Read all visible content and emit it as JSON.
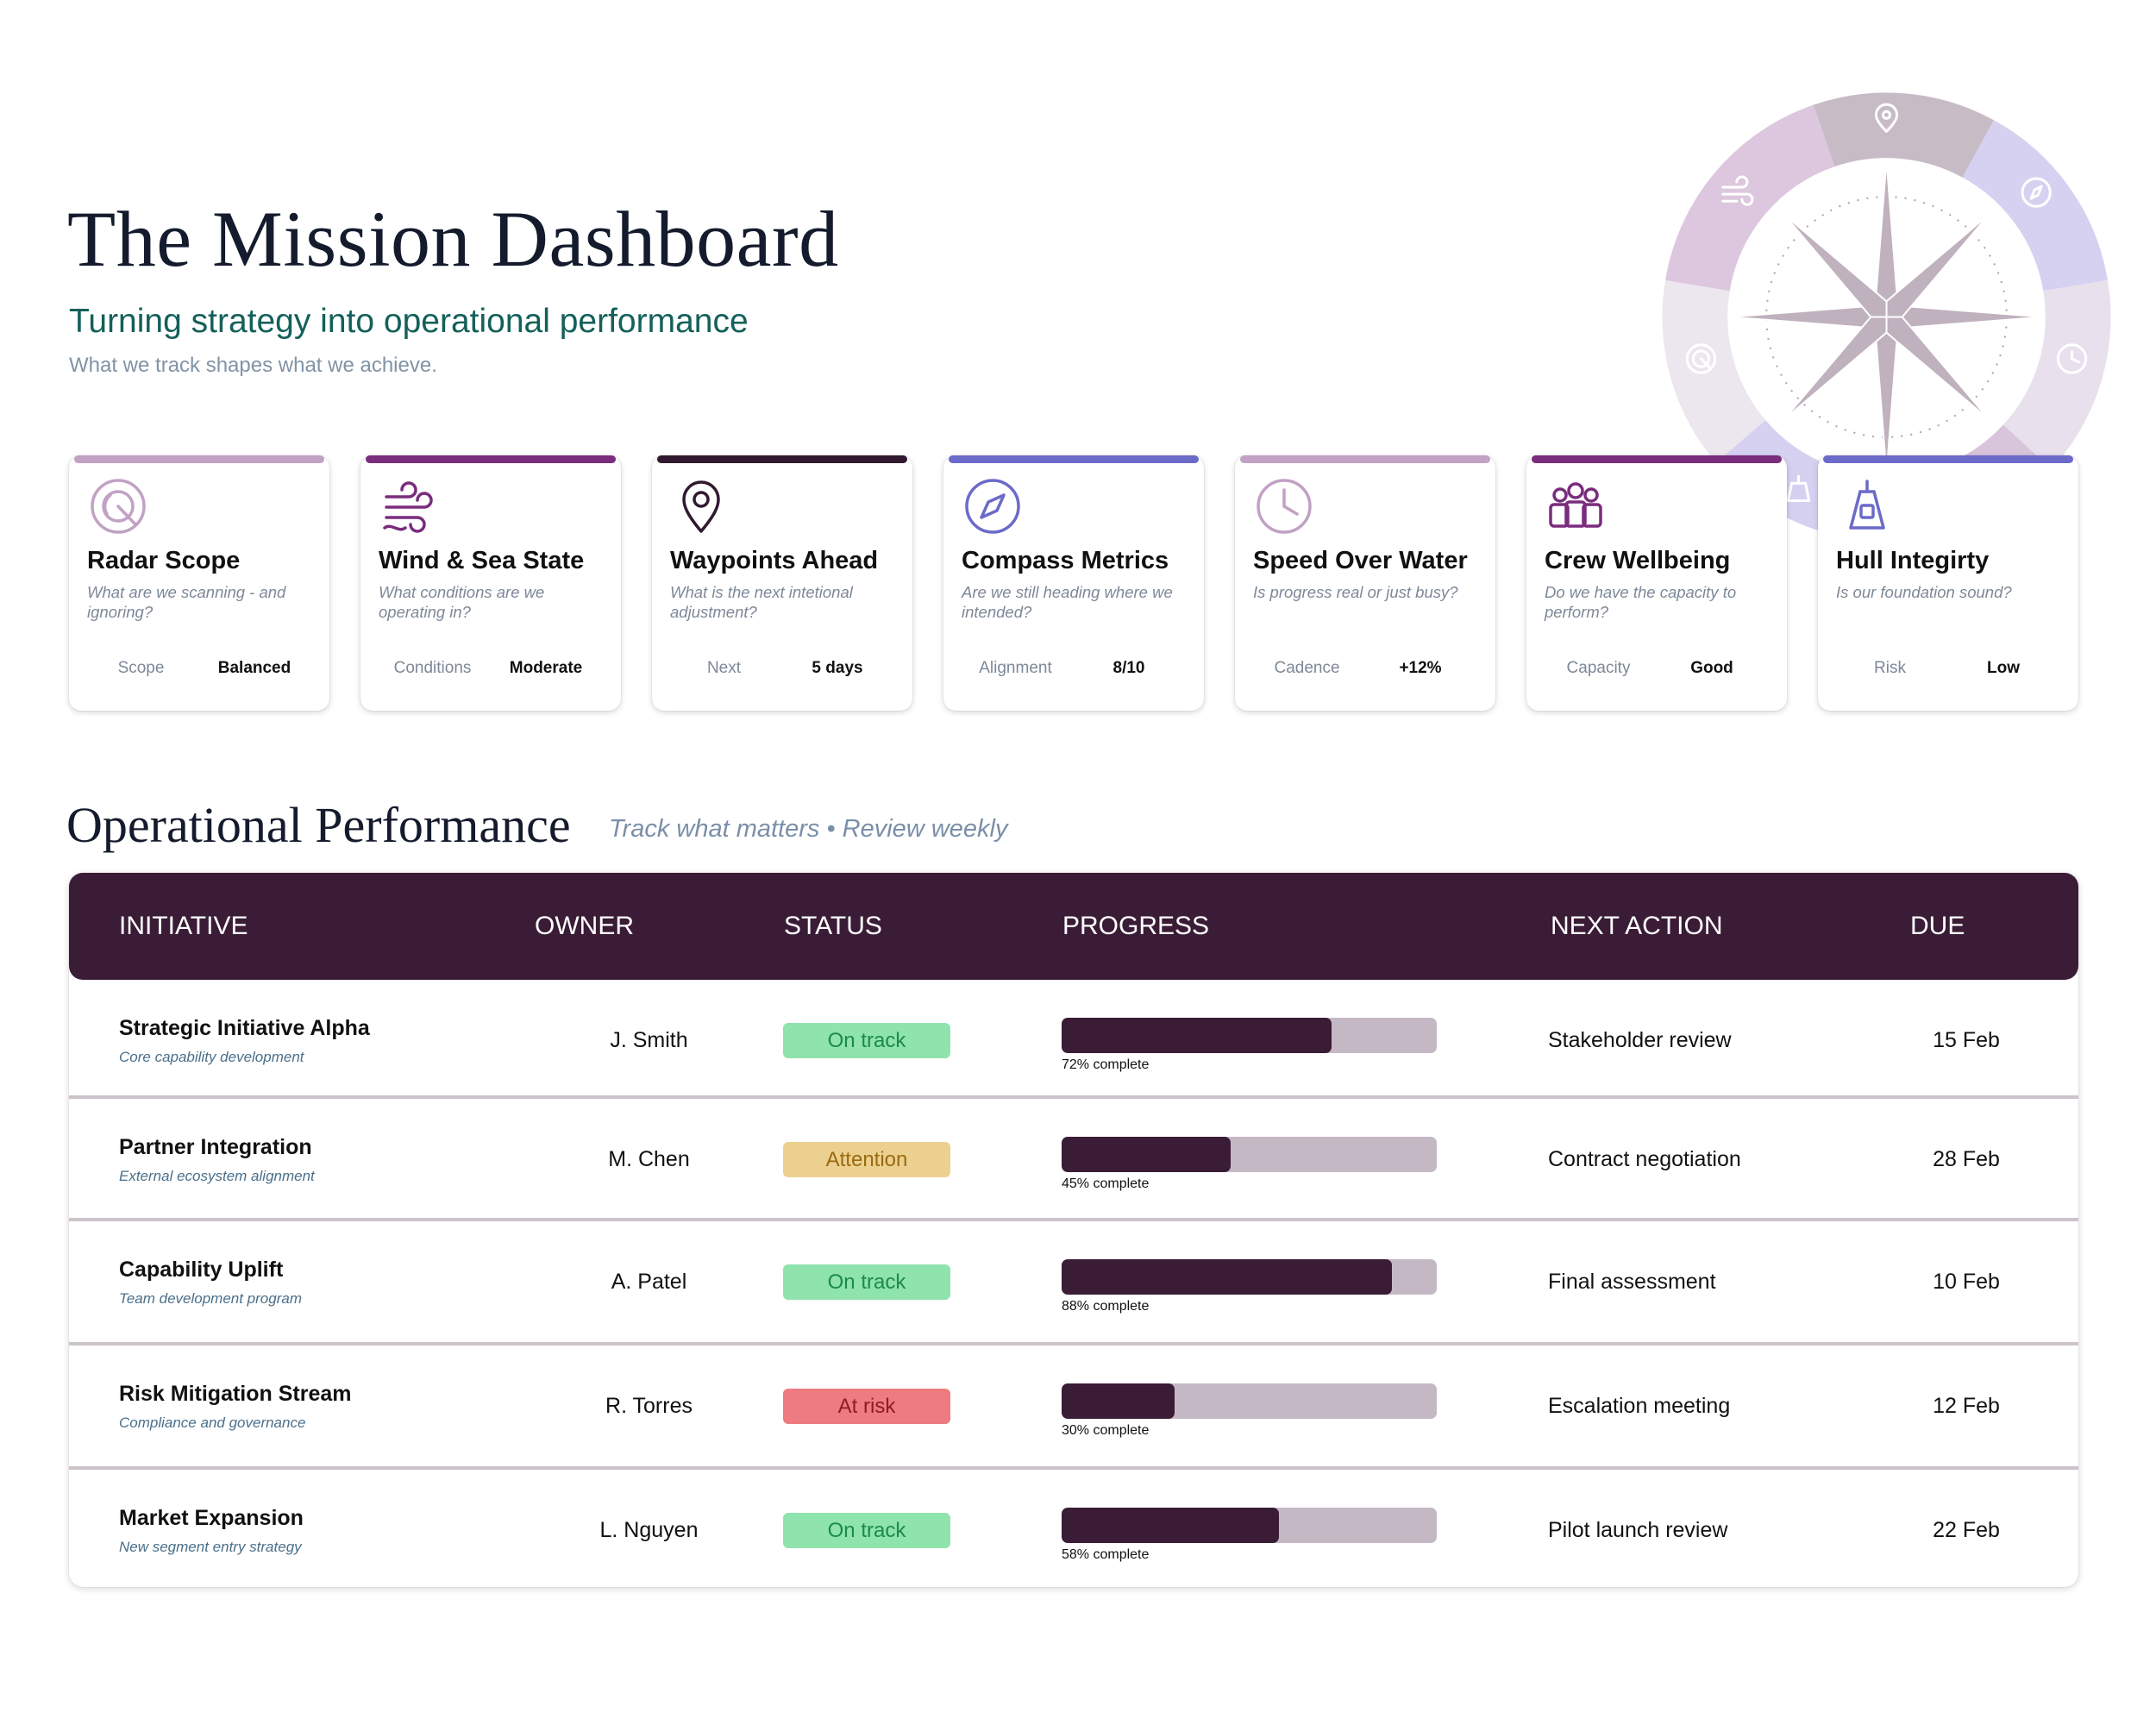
{
  "header": {
    "title": "The Mission Dashboard",
    "subtitle": "Turning strategy into operational performance",
    "tagline": "What we track shapes what we achieve."
  },
  "colors": {
    "primary": "#3a1c36",
    "subtitle_teal": "#14605a",
    "lilac": "#c1a1c4",
    "purple": "#7a2c7d",
    "plum_dark": "#311a2f",
    "indigo": "#6c6ac9",
    "status_on_track": "#8fe3ad",
    "status_attention": "#ecd08f",
    "status_at_risk": "#ed7b7f"
  },
  "cards": [
    {
      "icon": "radar-icon",
      "title": "Radar Scope",
      "question": "What are we scanning - and ignoring?",
      "metric_label": "Scope",
      "metric_value": "Balanced",
      "accent": "#c1a1c4"
    },
    {
      "icon": "wind-icon",
      "title": "Wind & Sea State",
      "question": "What conditions are we operating in?",
      "metric_label": "Conditions",
      "metric_value": "Moderate",
      "accent": "#7a2c7d"
    },
    {
      "icon": "map-pin-icon",
      "title": "Waypoints Ahead",
      "question": "What is the next intetional adjustment?",
      "metric_label": "Next",
      "metric_value": "5 days",
      "accent": "#311a2f"
    },
    {
      "icon": "compass-icon",
      "title": "Compass Metrics",
      "question": "Are we still heading where we intended?",
      "metric_label": "Alignment",
      "metric_value": "8/10",
      "accent": "#6c6ac9"
    },
    {
      "icon": "clock-icon",
      "title": "Speed Over Water",
      "question": "Is progress real or just busy?",
      "metric_label": "Cadence",
      "metric_value": "+12%",
      "accent": "#c1a1c4"
    },
    {
      "icon": "crew-icon",
      "title": "Crew Wellbeing",
      "question": "Do we have the capacity to perform?",
      "metric_label": "Capacity",
      "metric_value": "Good",
      "accent": "#7a2c7d"
    },
    {
      "icon": "ballast-icon",
      "title": "Hull Integirty",
      "question": "Is our foundation sound?",
      "metric_label": "Risk",
      "metric_value": "Low",
      "accent": "#6c6ac9"
    }
  ],
  "section": {
    "title": "Operational Performance",
    "note": "Track what matters • Review weekly"
  },
  "table": {
    "columns": [
      "INITIATIVE",
      "OWNER",
      "STATUS",
      "PROGRESS",
      "NEXT ACTION",
      "DUE"
    ],
    "rows": [
      {
        "initiative": "Strategic Initiative Alpha",
        "description": "Core capability development",
        "owner": "J. Smith",
        "status": "On track",
        "status_kind": "on-track",
        "progress": 0.72,
        "progress_label": "72% complete",
        "next_action": "Stakeholder review",
        "due": "15 Feb"
      },
      {
        "initiative": "Partner Integration",
        "description": "External ecosystem alignment",
        "owner": "M. Chen",
        "status": "Attention",
        "status_kind": "attention",
        "progress": 0.45,
        "progress_label": "45% complete",
        "next_action": "Contract negotiation",
        "due": "28 Feb"
      },
      {
        "initiative": "Capability Uplift",
        "description": "Team development program",
        "owner": "A. Patel",
        "status": "On track",
        "status_kind": "on-track",
        "progress": 0.88,
        "progress_label": "88% complete",
        "next_action": "Final assessment",
        "due": "10 Feb"
      },
      {
        "initiative": "Risk Mitigation Stream",
        "description": "Compliance and governance",
        "owner": "R. Torres",
        "status": "At risk",
        "status_kind": "at-risk",
        "progress": 0.3,
        "progress_label": "30% complete",
        "next_action": "Escalation meeting",
        "due": "12 Feb"
      },
      {
        "initiative": "Market Expansion",
        "description": "New segment entry strategy",
        "owner": "L. Nguyen",
        "status": "On track",
        "status_kind": "on-track",
        "progress": 0.58,
        "progress_label": "58% complete",
        "next_action": "Pilot launch review",
        "due": "22 Feb"
      }
    ]
  },
  "compass": {
    "ring_icons": [
      "map-pin-icon",
      "compass-icon",
      "clock-icon",
      "ballast-icon",
      "radar-icon",
      "wind-icon"
    ]
  }
}
